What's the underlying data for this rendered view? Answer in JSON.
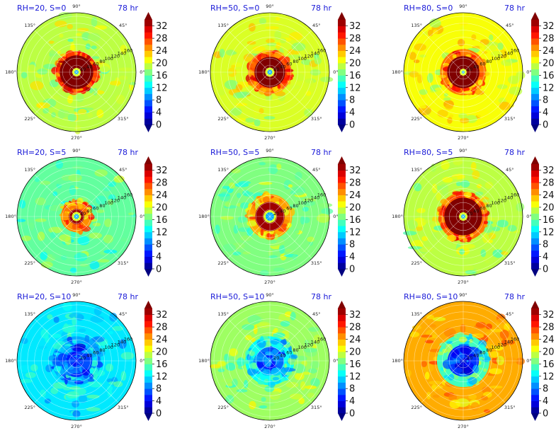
{
  "chart_data": [
    {
      "type": "heatmap",
      "title": "RH=20, S=0",
      "time": "78 hr",
      "eye_radius": 4,
      "core_radius": 48,
      "ring_inner": 48,
      "ring_outer": 60,
      "core_value": 34,
      "ring_value": 28,
      "outer_value": 19,
      "low_center": false,
      "colorbar_ticks": [
        "0",
        "4",
        "8",
        "12",
        "16",
        "20",
        "24",
        "28",
        "32"
      ],
      "colorbar_range": [
        0,
        34
      ],
      "radial_ticks": [
        "20",
        "40",
        "60",
        "80",
        "100",
        "120",
        "140",
        "160"
      ],
      "angle_labels": [
        "90°",
        "45°",
        "0°",
        "315°",
        "270°",
        "225°",
        "180°",
        "135°"
      ]
    },
    {
      "type": "heatmap",
      "title": "RH=50, S=0",
      "time": "78 hr",
      "eye_radius": 5,
      "core_radius": 44,
      "ring_inner": 44,
      "ring_outer": 62,
      "core_value": 34,
      "ring_value": 27,
      "outer_value": 20,
      "low_center": false,
      "colorbar_ticks": [
        "0",
        "4",
        "8",
        "12",
        "16",
        "20",
        "24",
        "28",
        "32"
      ],
      "colorbar_range": [
        0,
        34
      ],
      "radial_ticks": [
        "20",
        "40",
        "60",
        "80",
        "100",
        "120",
        "140",
        "160"
      ],
      "angle_labels": [
        "90°",
        "45°",
        "0°",
        "315°",
        "270°",
        "225°",
        "180°",
        "135°"
      ]
    },
    {
      "type": "heatmap",
      "title": "RH=80, S=0",
      "time": "78 hr",
      "eye_radius": 2,
      "core_radius": 46,
      "ring_inner": 46,
      "ring_outer": 66,
      "core_value": 34,
      "ring_value": 26,
      "outer_value": 21,
      "low_center": false,
      "colorbar_ticks": [
        "0",
        "4",
        "8",
        "12",
        "16",
        "20",
        "24",
        "28",
        "32"
      ],
      "colorbar_range": [
        0,
        34
      ],
      "radial_ticks": [
        "20",
        "40",
        "60",
        "80",
        "100",
        "120",
        "140",
        "160"
      ],
      "angle_labels": [
        "90°",
        "45°",
        "0°",
        "315°",
        "270°",
        "225°",
        "180°",
        "135°"
      ]
    },
    {
      "type": "heatmap",
      "title": "RH=20, S=5",
      "time": "78 hr",
      "eye_radius": 5,
      "core_radius": 22,
      "ring_inner": 22,
      "ring_outer": 45,
      "core_value": 33,
      "ring_value": 25,
      "outer_value": 16,
      "low_center": false,
      "colorbar_ticks": [
        "0",
        "4",
        "8",
        "12",
        "16",
        "20",
        "24",
        "28",
        "32"
      ],
      "colorbar_range": [
        0,
        34
      ],
      "radial_ticks": [
        "20",
        "40",
        "60",
        "80",
        "100",
        "120",
        "140",
        "160"
      ],
      "angle_labels": [
        "90°",
        "45°",
        "0°",
        "315°",
        "270°",
        "225°",
        "180°",
        "135°"
      ]
    },
    {
      "type": "heatmap",
      "title": "RH=50, S=5",
      "time": "78 hr",
      "eye_radius": 10,
      "core_radius": 42,
      "ring_inner": 42,
      "ring_outer": 64,
      "core_value": 33,
      "ring_value": 24,
      "outer_value": 17,
      "low_center": false,
      "colorbar_ticks": [
        "0",
        "4",
        "8",
        "12",
        "16",
        "20",
        "24",
        "28",
        "32"
      ],
      "colorbar_range": [
        0,
        34
      ],
      "radial_ticks": [
        "20",
        "40",
        "60",
        "80",
        "100",
        "120",
        "140",
        "160"
      ],
      "angle_labels": [
        "90°",
        "45°",
        "0°",
        "315°",
        "270°",
        "225°",
        "180°",
        "135°"
      ]
    },
    {
      "type": "heatmap",
      "title": "RH=80, S=5",
      "time": "78 hr",
      "eye_radius": 4,
      "core_radius": 54,
      "ring_inner": 54,
      "ring_outer": 70,
      "core_value": 34,
      "ring_value": 26,
      "outer_value": 19,
      "low_center": false,
      "colorbar_ticks": [
        "0",
        "4",
        "8",
        "12",
        "16",
        "20",
        "24",
        "28",
        "32"
      ],
      "colorbar_range": [
        0,
        34
      ],
      "radial_ticks": [
        "20",
        "40",
        "60",
        "80",
        "100",
        "120",
        "140",
        "160"
      ],
      "angle_labels": [
        "90°",
        "45°",
        "0°",
        "315°",
        "270°",
        "225°",
        "180°",
        "135°"
      ]
    },
    {
      "type": "heatmap",
      "title": "RH=20, S=10",
      "time": "78 hr",
      "eye_radius": 0,
      "core_radius": 45,
      "ring_inner": 45,
      "ring_outer": 70,
      "core_value": 7,
      "ring_value": 10,
      "outer_value": 12,
      "low_center": true,
      "colorbar_ticks": [
        "0",
        "4",
        "8",
        "12",
        "16",
        "20",
        "24",
        "28",
        "32"
      ],
      "colorbar_range": [
        0,
        34
      ],
      "radial_ticks": [
        "20",
        "40",
        "60",
        "80",
        "100",
        "120",
        "140",
        "160"
      ],
      "angle_labels": [
        "90°",
        "45°",
        "0°",
        "315°",
        "270°",
        "225°",
        "180°",
        "135°"
      ]
    },
    {
      "type": "heatmap",
      "title": "RH=50, S=10",
      "time": "78 hr",
      "eye_radius": 0,
      "core_radius": 40,
      "ring_inner": 40,
      "ring_outer": 70,
      "core_value": 8,
      "ring_value": 13,
      "outer_value": 18,
      "low_center": true,
      "colorbar_ticks": [
        "0",
        "4",
        "8",
        "12",
        "16",
        "20",
        "24",
        "28",
        "32"
      ],
      "colorbar_range": [
        0,
        34
      ],
      "radial_ticks": [
        "20",
        "40",
        "60",
        "80",
        "100",
        "120",
        "140",
        "160"
      ],
      "angle_labels": [
        "90°",
        "45°",
        "0°",
        "315°",
        "270°",
        "225°",
        "180°",
        "135°"
      ]
    },
    {
      "type": "heatmap",
      "title": "RH=80, S=10",
      "time": "78 hr",
      "eye_radius": 0,
      "core_radius": 45,
      "ring_inner": 45,
      "ring_outer": 75,
      "core_value": 6,
      "ring_value": 15,
      "outer_value": 24,
      "low_center": true,
      "colorbar_ticks": [
        "0",
        "4",
        "8",
        "12",
        "16",
        "20",
        "24",
        "28",
        "32"
      ],
      "colorbar_range": [
        0,
        34
      ],
      "radial_ticks": [
        "20",
        "40",
        "60",
        "80",
        "100",
        "120",
        "140",
        "160"
      ],
      "angle_labels": [
        "90°",
        "45°",
        "0°",
        "315°",
        "270°",
        "225°",
        "180°",
        "135°"
      ]
    }
  ]
}
